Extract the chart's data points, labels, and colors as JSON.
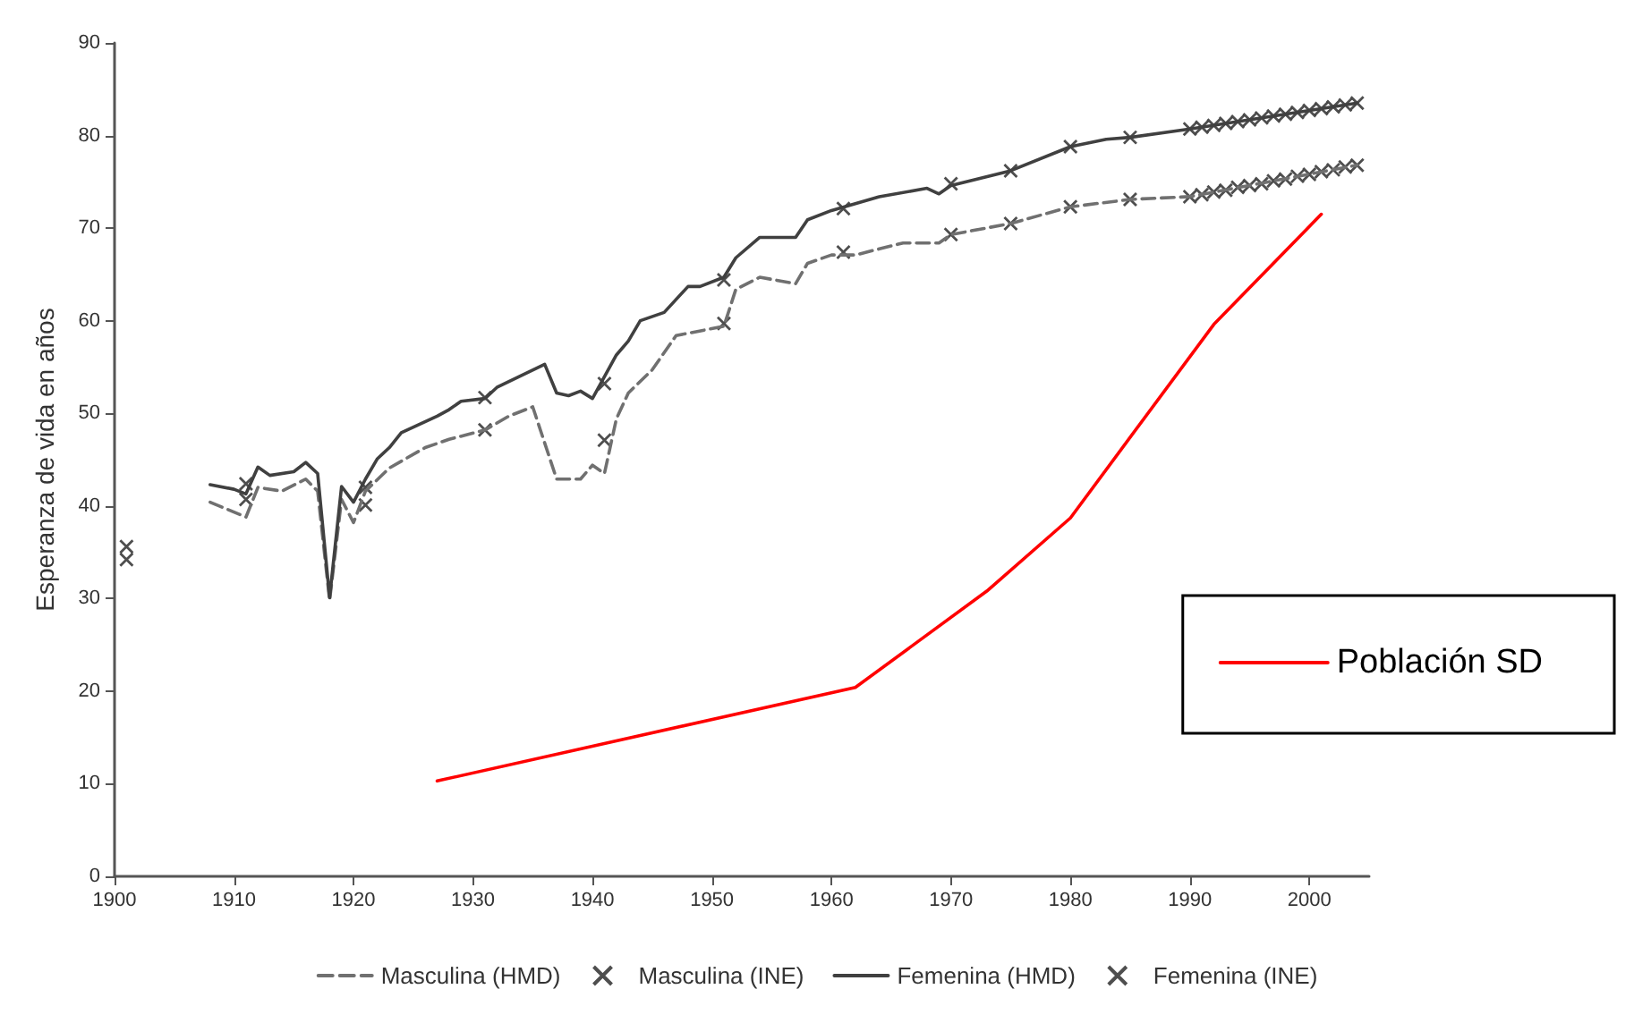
{
  "chart_data": {
    "type": "line",
    "ylabel": "Esperanza de vida en años",
    "xlim": [
      1900,
      2005
    ],
    "xticks": [
      1900,
      1910,
      1920,
      1930,
      1940,
      1950,
      1960,
      1970,
      1980,
      1990,
      2000
    ],
    "ylim": [
      0,
      90
    ],
    "yticks": [
      0,
      10,
      20,
      30,
      40,
      50,
      60,
      70,
      80,
      90
    ],
    "grid": false,
    "legend": "bottom",
    "series": [
      {
        "name": "Masculina (HMD)",
        "color": "#707070",
        "line_style": "dashed",
        "x": [
          1908,
          1911,
          1912,
          1914,
          1916,
          1917,
          1918,
          1919,
          1920,
          1921,
          1923,
          1926,
          1928,
          1931,
          1933,
          1935,
          1937,
          1939,
          1940,
          1941,
          1942,
          1943,
          1945,
          1947,
          1951,
          1952,
          1954,
          1957,
          1958,
          1960,
          1962,
          1966,
          1969,
          1970,
          1975,
          1980,
          1985,
          1990,
          2004
        ],
        "values": [
          40.4,
          38.8,
          42,
          41.6,
          42.9,
          41.6,
          29.8,
          40.7,
          38.2,
          41.6,
          44.1,
          46.3,
          47.2,
          48.2,
          49.7,
          50.7,
          42.9,
          42.9,
          44.4,
          43.5,
          49.4,
          52.2,
          54.7,
          58.4,
          59.4,
          63.4,
          64.7,
          64,
          66.2,
          67.1,
          67.1,
          68.4,
          68.4,
          69.3,
          70.5,
          72.3,
          73.1,
          73.4,
          76.8
        ]
      },
      {
        "type": "scatter",
        "name": "Masculina (INE)",
        "color": "#222222",
        "marker": "cross",
        "x": [
          1901,
          1911,
          1921,
          1931,
          1941,
          1951,
          1961,
          1970,
          1975,
          1980,
          1985,
          1990,
          1991,
          1992,
          1993,
          1994,
          1995,
          1996,
          1997,
          1998,
          1999,
          2000,
          2001,
          2002,
          2003,
          2004
        ],
        "values": [
          34.2,
          40.7,
          40.1,
          48.2,
          47.1,
          59.7,
          67.4,
          69.3,
          70.5,
          72.3,
          73.1,
          73.4,
          73.6,
          73.9,
          74.1,
          74.4,
          74.6,
          74.8,
          75.1,
          75.3,
          75.6,
          75.8,
          76.1,
          76.3,
          76.6,
          76.8
        ]
      },
      {
        "name": "Femenina (HMD)",
        "color": "#404040",
        "line_style": "solid",
        "x": [
          1908,
          1910,
          1911,
          1912,
          1913,
          1915,
          1916,
          1917,
          1918,
          1919,
          1920,
          1921,
          1922,
          1923,
          1924,
          1927,
          1928,
          1929,
          1931,
          1932,
          1936,
          1937,
          1938,
          1939,
          1940,
          1942,
          1943,
          1944,
          1946,
          1948,
          1949,
          1951,
          1952,
          1954,
          1957,
          1958,
          1960,
          1964,
          1968,
          1969,
          1970,
          1975,
          1980,
          1983,
          1985,
          1990,
          2004
        ],
        "values": [
          42.3,
          41.8,
          41.3,
          44.2,
          43.3,
          43.7,
          44.7,
          43.5,
          30.1,
          42.1,
          40.4,
          42.9,
          45.1,
          46.3,
          47.9,
          49.7,
          50.4,
          51.3,
          51.6,
          52.8,
          55.3,
          52.2,
          51.9,
          52.4,
          51.6,
          56.3,
          57.8,
          60,
          60.9,
          63.7,
          63.7,
          64.7,
          66.8,
          69,
          69,
          70.9,
          71.9,
          73.4,
          74.3,
          73.7,
          74.6,
          76.2,
          78.8,
          79.6,
          79.8,
          80.7,
          83.5
        ]
      },
      {
        "type": "scatter",
        "name": "Femenina (INE)",
        "color": "#222222",
        "marker": "cross",
        "x": [
          1901,
          1911,
          1921,
          1931,
          1941,
          1951,
          1961,
          1970,
          1975,
          1980,
          1985,
          1990,
          1991,
          1992,
          1993,
          1994,
          1995,
          1996,
          1997,
          1998,
          1999,
          2000,
          2001,
          2002,
          2003,
          2004
        ],
        "values": [
          35.6,
          42.4,
          42,
          51.7,
          53.2,
          64.4,
          72.1,
          74.8,
          76.2,
          78.8,
          79.8,
          80.7,
          80.9,
          81.1,
          81.3,
          81.5,
          81.7,
          81.9,
          82.1,
          82.3,
          82.5,
          82.7,
          82.9,
          83.1,
          83.3,
          83.5
        ]
      },
      {
        "name": "Población SD",
        "color": "#ff0000",
        "line_style": "solid",
        "x": [
          1927,
          1962,
          1973,
          1980,
          1992,
          2001
        ],
        "values": [
          10.3,
          20.4,
          30.8,
          38.7,
          59.6,
          71.5
        ]
      }
    ]
  }
}
